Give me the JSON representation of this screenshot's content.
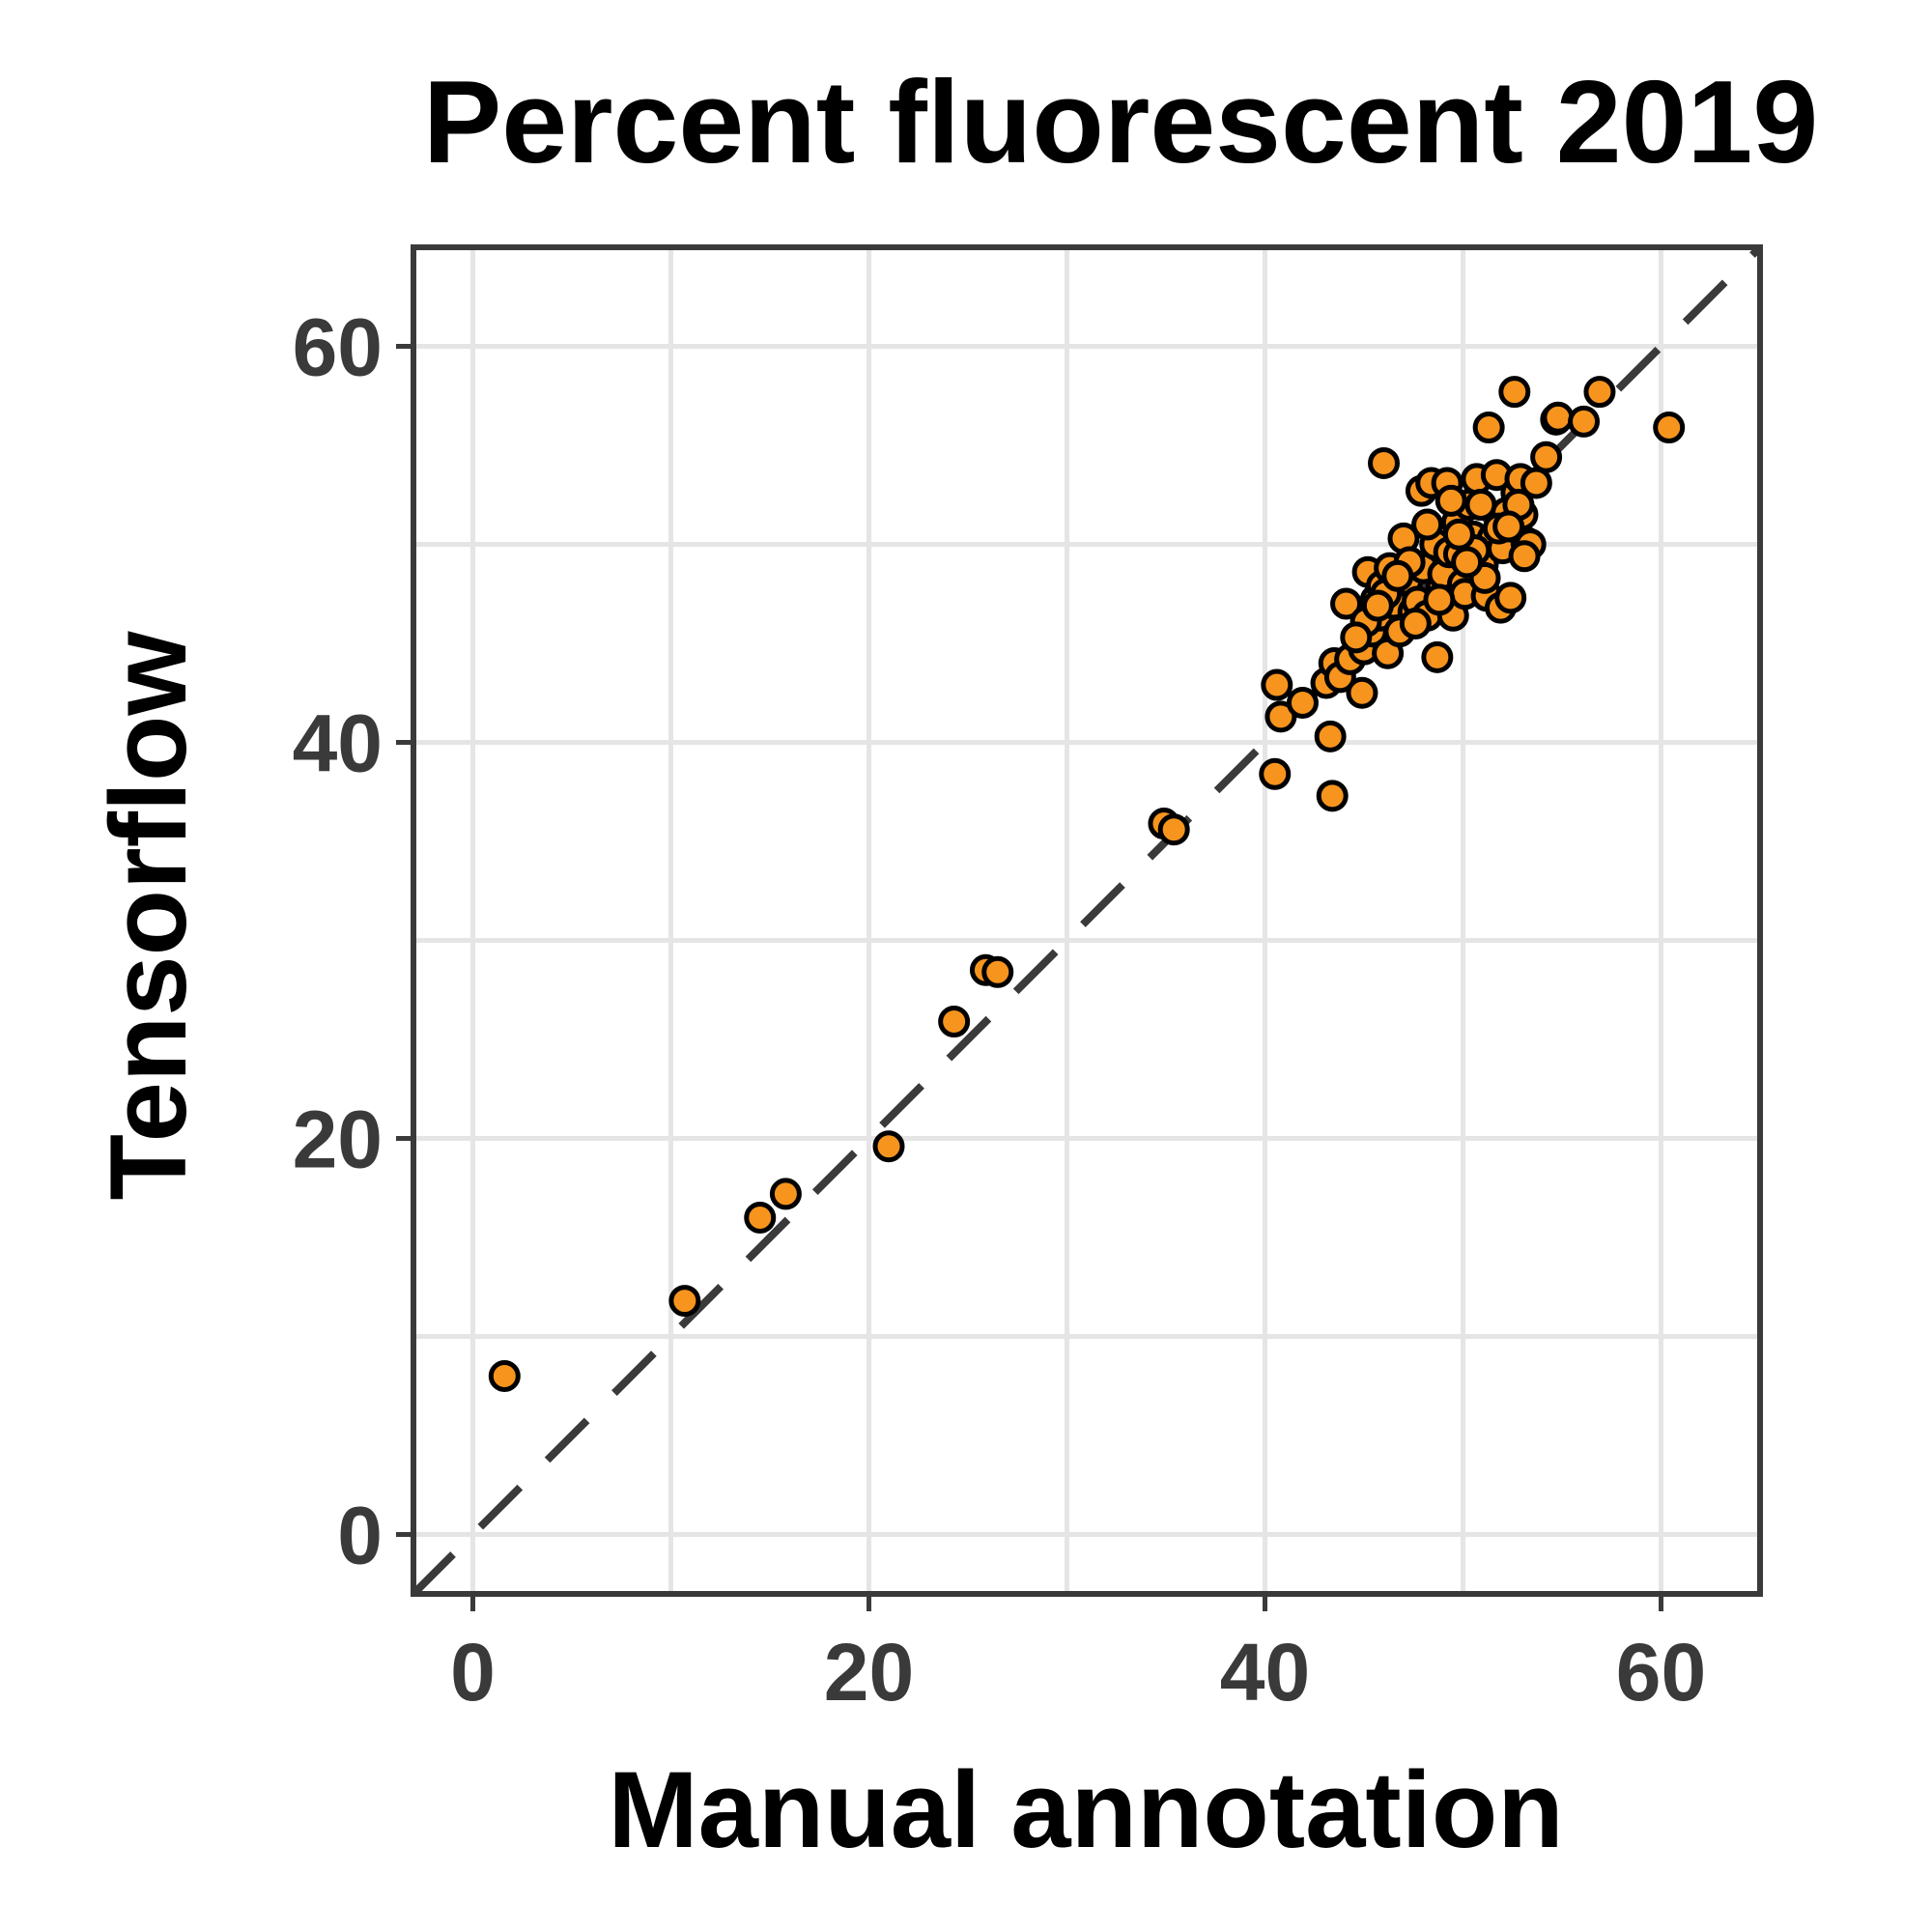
{
  "chart_data": {
    "type": "scatter",
    "title": "Percent fluorescent 2019",
    "xlabel": "Manual annotation",
    "ylabel": "Tensorflow",
    "xlim": [
      -3,
      65
    ],
    "ylim": [
      -3,
      65
    ],
    "x_ticks": [
      0,
      20,
      40,
      60
    ],
    "y_ticks": [
      0,
      20,
      40,
      60
    ],
    "x_tick_labels": [
      "0",
      "20",
      "40",
      "60"
    ],
    "y_tick_labels": [
      "0",
      "20",
      "40",
      "60"
    ],
    "grid": true,
    "reference_line": {
      "slope": 1,
      "intercept": 0,
      "style": "dashed",
      "color": "#3a3a3a"
    },
    "point_fill": "#f7941d",
    "point_stroke": "#000000",
    "x": [
      1.6,
      10.7,
      14.5,
      15.8,
      21.0,
      24.3,
      25.9,
      26.5,
      34.9,
      35.4,
      40.5,
      40.6,
      40.8,
      41.9,
      43.1,
      43.3,
      43.4,
      43.5,
      43.8,
      44.1,
      44.3,
      44.9,
      45.0,
      45.2,
      45.4,
      45.6,
      45.8,
      45.9,
      46.0,
      46.2,
      46.3,
      46.5,
      46.8,
      47.0,
      47.2,
      47.5,
      47.7,
      47.9,
      48.0,
      48.2,
      48.4,
      48.6,
      48.7,
      48.9,
      49.0,
      49.2,
      49.3,
      49.5,
      49.7,
      49.8,
      50.0,
      50.1,
      50.3,
      50.5,
      50.7,
      50.9,
      51.0,
      51.2,
      51.3,
      51.5,
      51.7,
      51.9,
      52.0,
      52.2,
      52.4,
      52.6,
      52.7,
      52.9,
      53.0,
      53.2,
      53.4,
      53.7,
      54.2,
      54.7,
      54.8,
      56.1,
      56.9,
      60.4,
      48.2,
      49.4,
      50.6,
      51.8,
      47.3,
      46.1,
      45.1,
      44.6,
      49.8,
      52.8,
      53.1,
      51.1,
      48.8,
      47.6,
      46.7,
      45.7,
      50.2,
      52.3
    ],
    "y": [
      8.0,
      11.8,
      16.0,
      17.2,
      19.6,
      25.9,
      28.5,
      28.4,
      35.9,
      35.6,
      38.4,
      42.9,
      41.3,
      42.0,
      43.0,
      40.3,
      37.3,
      44.0,
      43.3,
      47.0,
      44.2,
      42.5,
      44.7,
      48.6,
      45.6,
      47.2,
      46.4,
      47.9,
      54.1,
      44.5,
      48.8,
      47.0,
      45.6,
      50.3,
      48.2,
      46.6,
      47.1,
      52.7,
      48.8,
      46.4,
      53.1,
      50.0,
      44.3,
      47.8,
      48.5,
      53.1,
      49.6,
      46.4,
      51.1,
      49.5,
      48.0,
      47.5,
      52.0,
      50.4,
      53.3,
      52.0,
      49.0,
      47.4,
      55.9,
      50.3,
      53.5,
      46.8,
      49.8,
      51.6,
      47.3,
      57.7,
      52.6,
      53.3,
      51.5,
      50.1,
      50.0,
      53.1,
      54.4,
      56.3,
      56.4,
      56.2,
      57.7,
      55.9,
      51.0,
      52.2,
      49.7,
      50.8,
      49.1,
      47.5,
      46.1,
      45.3,
      50.5,
      52.0,
      49.4,
      48.3,
      47.2,
      46.0,
      48.4,
      46.9,
      49.1,
      50.9
    ]
  }
}
